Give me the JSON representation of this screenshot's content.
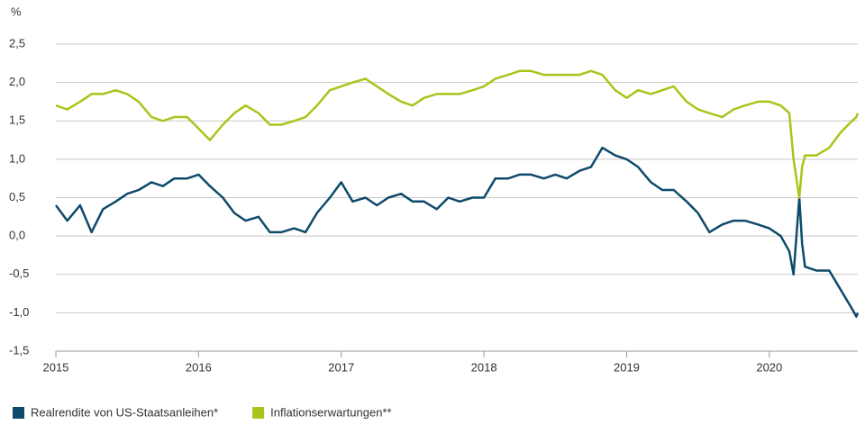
{
  "chart_data": {
    "type": "line",
    "y_axis_label": "%",
    "x": [
      2015.0,
      2015.08,
      2015.17,
      2015.25,
      2015.33,
      2015.42,
      2015.5,
      2015.58,
      2015.67,
      2015.75,
      2015.83,
      2015.92,
      2016.0,
      2016.08,
      2016.17,
      2016.25,
      2016.33,
      2016.42,
      2016.5,
      2016.58,
      2016.67,
      2016.75,
      2016.83,
      2016.92,
      2017.0,
      2017.08,
      2017.17,
      2017.25,
      2017.33,
      2017.42,
      2017.5,
      2017.58,
      2017.67,
      2017.75,
      2017.83,
      2017.92,
      2018.0,
      2018.08,
      2018.17,
      2018.25,
      2018.33,
      2018.42,
      2018.5,
      2018.58,
      2018.67,
      2018.75,
      2018.83,
      2018.92,
      2019.0,
      2019.08,
      2019.17,
      2019.25,
      2019.33,
      2019.42,
      2019.5,
      2019.58,
      2019.67,
      2019.75,
      2019.83,
      2019.92,
      2020.0,
      2020.08,
      2020.14,
      2020.17,
      2020.21,
      2020.23,
      2020.25,
      2020.33,
      2020.42,
      2020.5,
      2020.58,
      2020.61,
      2020.62
    ],
    "series": [
      {
        "name": "Realrendite von US-Staatsanleihen*",
        "color": "#0d4a6b",
        "values": [
          0.4,
          0.2,
          0.4,
          0.05,
          0.35,
          0.45,
          0.55,
          0.6,
          0.7,
          0.65,
          0.75,
          0.75,
          0.8,
          0.65,
          0.5,
          0.3,
          0.2,
          0.25,
          0.05,
          0.05,
          0.1,
          0.05,
          0.3,
          0.5,
          0.7,
          0.45,
          0.5,
          0.4,
          0.5,
          0.55,
          0.45,
          0.45,
          0.35,
          0.5,
          0.45,
          0.5,
          0.5,
          0.75,
          0.75,
          0.8,
          0.8,
          0.75,
          0.8,
          0.75,
          0.85,
          0.9,
          1.15,
          1.05,
          1.0,
          0.9,
          0.7,
          0.6,
          0.6,
          0.45,
          0.3,
          0.05,
          0.15,
          0.2,
          0.2,
          0.15,
          0.1,
          0.0,
          -0.2,
          -0.5,
          0.5,
          -0.1,
          -0.4,
          -0.45,
          -0.45,
          -0.7,
          -0.95,
          -1.05,
          -1.0
        ]
      },
      {
        "name": "Inflationserwartungen**",
        "color": "#a8c51a",
        "values": [
          1.7,
          1.65,
          1.75,
          1.85,
          1.85,
          1.9,
          1.85,
          1.75,
          1.55,
          1.5,
          1.55,
          1.55,
          1.4,
          1.25,
          1.45,
          1.6,
          1.7,
          1.6,
          1.45,
          1.45,
          1.5,
          1.55,
          1.7,
          1.9,
          1.95,
          2.0,
          2.05,
          1.95,
          1.85,
          1.75,
          1.7,
          1.8,
          1.85,
          1.85,
          1.85,
          1.9,
          1.95,
          2.05,
          2.1,
          2.15,
          2.15,
          2.1,
          2.1,
          2.1,
          2.1,
          2.15,
          2.1,
          1.9,
          1.8,
          1.9,
          1.85,
          1.9,
          1.95,
          1.75,
          1.65,
          1.6,
          1.55,
          1.65,
          1.7,
          1.75,
          1.75,
          1.7,
          1.6,
          1.0,
          0.5,
          0.9,
          1.05,
          1.05,
          1.15,
          1.35,
          1.5,
          1.55,
          1.6
        ]
      }
    ],
    "xlim": [
      2015,
      2020.62
    ],
    "xticks": [
      2015,
      2016,
      2017,
      2018,
      2019,
      2020
    ],
    "ylim": [
      -1.5,
      2.5
    ],
    "yticks": [
      {
        "value": -1.5,
        "label": "-1,5"
      },
      {
        "value": -1.0,
        "label": "-1,0"
      },
      {
        "value": -0.5,
        "label": "-0,5"
      },
      {
        "value": 0,
        "label": "0,0"
      },
      {
        "value": 0.5,
        "label": "0,5"
      },
      {
        "value": 1.0,
        "label": "1,0"
      },
      {
        "value": 1.5,
        "label": "1,5"
      },
      {
        "value": 2.0,
        "label": "2,0"
      },
      {
        "value": 2.5,
        "label": "2,5"
      }
    ],
    "grid": true
  }
}
